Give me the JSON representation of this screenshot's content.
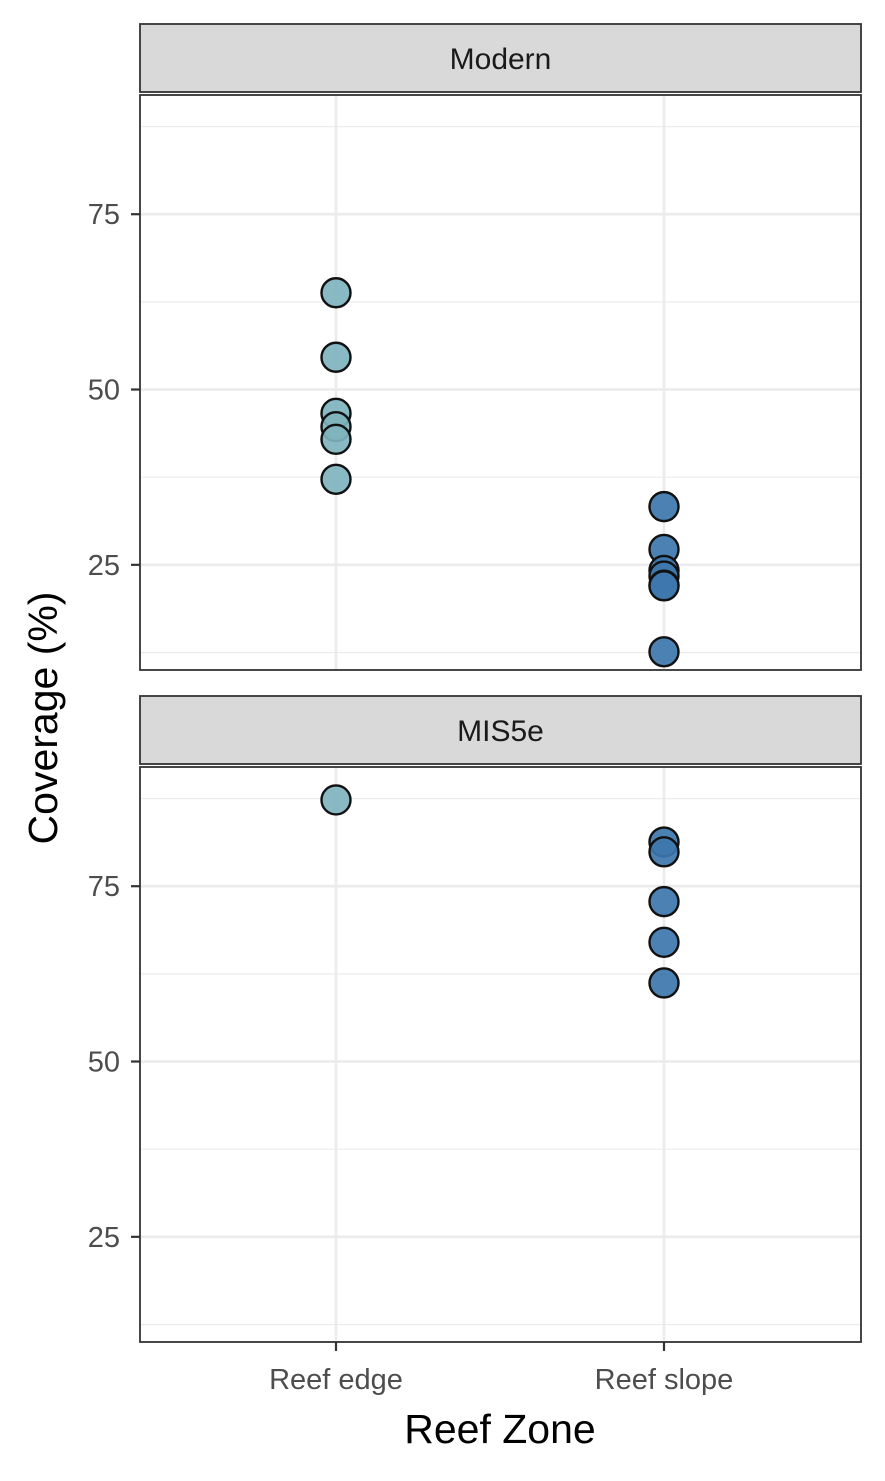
{
  "chart_data": {
    "type": "scatter",
    "xlabel": "Reef Zone",
    "ylabel": "Coverage (%)",
    "categories": [
      "Reef edge",
      "Reef slope"
    ],
    "ylim": [
      10,
      92
    ],
    "y_ticks": [
      25,
      50,
      75
    ],
    "y_tick_labels": [
      "25",
      "50",
      "75"
    ],
    "grid": true,
    "colors": {
      "Reef edge": "#7fb3bd",
      "Reef slope": "#3d77ac",
      "point_outline": "#111111",
      "strip_fill": "#d9d9d9",
      "grid": "#ebebeb",
      "panel_border": "#333333"
    },
    "panels": [
      {
        "title": "Modern",
        "series": [
          {
            "category": "Reef edge",
            "values": [
              63.8,
              54.6,
              46.6,
              44.7,
              42.9,
              37.2
            ]
          },
          {
            "category": "Reef slope",
            "values": [
              33.3,
              27.2,
              24.2,
              23.4,
              22.1,
              22.0,
              12.6
            ]
          }
        ]
      },
      {
        "title": "MIS5e",
        "series": [
          {
            "category": "Reef edge",
            "values": [
              87.3
            ]
          },
          {
            "category": "Reef slope",
            "values": [
              81.3,
              79.9,
              72.8,
              67.0,
              61.2
            ]
          }
        ]
      }
    ]
  }
}
